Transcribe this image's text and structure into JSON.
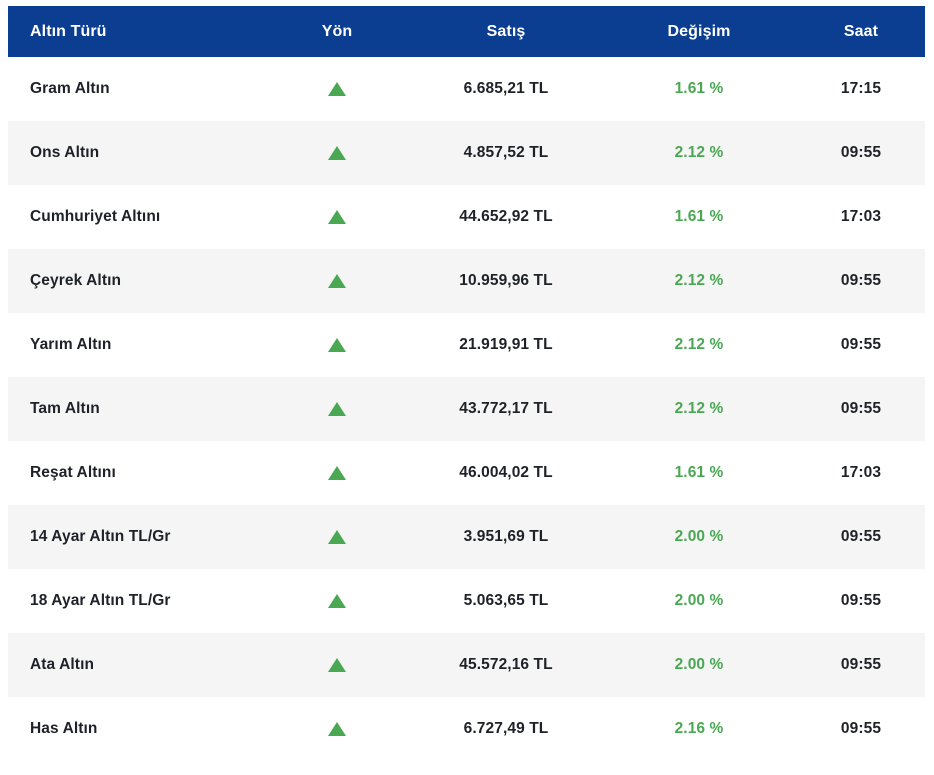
{
  "chart_data": {
    "type": "table",
    "title": "",
    "columns": [
      "Altın Türü",
      "Yön",
      "Satış",
      "Değişim",
      "Saat"
    ],
    "rows": [
      {
        "type": "Gram Altın",
        "direction": "up",
        "price": "6.685,21 TL",
        "change": "1.61 %",
        "time": "17:15"
      },
      {
        "type": "Ons Altın",
        "direction": "up",
        "price": "4.857,52 TL",
        "change": "2.12 %",
        "time": "09:55"
      },
      {
        "type": "Cumhuriyet Altını",
        "direction": "up",
        "price": "44.652,92 TL",
        "change": "1.61 %",
        "time": "17:03"
      },
      {
        "type": "Çeyrek Altın",
        "direction": "up",
        "price": "10.959,96 TL",
        "change": "2.12 %",
        "time": "09:55"
      },
      {
        "type": "Yarım Altın",
        "direction": "up",
        "price": "21.919,91 TL",
        "change": "2.12 %",
        "time": "09:55"
      },
      {
        "type": "Tam Altın",
        "direction": "up",
        "price": "43.772,17 TL",
        "change": "2.12 %",
        "time": "09:55"
      },
      {
        "type": "Reşat Altını",
        "direction": "up",
        "price": "46.004,02 TL",
        "change": "1.61 %",
        "time": "17:03"
      },
      {
        "type": "14 Ayar Altın TL/Gr",
        "direction": "up",
        "price": "3.951,69 TL",
        "change": "2.00 %",
        "time": "09:55"
      },
      {
        "type": "18 Ayar Altın TL/Gr",
        "direction": "up",
        "price": "5.063,65 TL",
        "change": "2.00 %",
        "time": "09:55"
      },
      {
        "type": "Ata Altın",
        "direction": "up",
        "price": "45.572,16 TL",
        "change": "2.00 %",
        "time": "09:55"
      },
      {
        "type": "Has Altın",
        "direction": "up",
        "price": "6.727,49 TL",
        "change": "2.16 %",
        "time": "09:55"
      }
    ]
  },
  "colors": {
    "header_bg": "#0b3d91",
    "header_text": "#ffffff",
    "row_alt_bg": "#f5f5f5",
    "up_green": "#4aa852",
    "text": "#1e2127"
  }
}
